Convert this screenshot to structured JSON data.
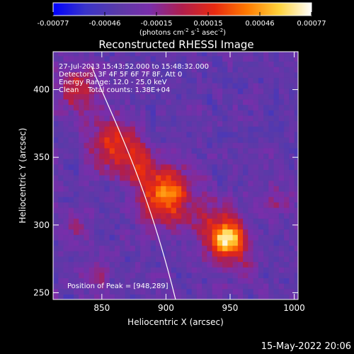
{
  "colorbar": {
    "ticks": [
      "-0.00077",
      "-0.00046",
      "-0.00015",
      "0.00015",
      "0.00046",
      "0.00077"
    ],
    "unit": {
      "open": "(photons cm",
      "e1": "-2",
      "s": " s",
      "e2": "-1",
      "asec": " asec",
      "e3": "-2",
      "close": ")"
    }
  },
  "chart_data": {
    "type": "heatmap",
    "title": "Reconstructed RHESSI Image",
    "xlabel": "Heliocentric X (arcsec)",
    "ylabel": "Heliocentric Y (arcsec)",
    "xlim": [
      812,
      1003
    ],
    "ylim": [
      245,
      428
    ],
    "xticks": [
      850,
      900,
      950,
      1000
    ],
    "yticks": [
      250,
      300,
      350,
      400
    ],
    "value_range": [
      -0.00077,
      0.00077
    ],
    "peak": [
      948,
      289
    ],
    "grid": false,
    "info_lines": [
      "27-Jul-2013 15:43:52.000 to 15:48:32.000",
      "Detectors: 3F 4F 5F 6F 7F 8F, Att 0",
      "Energy Range: 12.0 - 25.0 keV",
      "Clean    Total counts: 1.38E+04"
    ],
    "peak_text": "Position of Peak = [948,289]"
  },
  "footer": {
    "timestamp": "15-May-2022 20:06"
  },
  "colors": {
    "background": "#000000",
    "frame": "#ffffff",
    "limb": "#ffffff",
    "colormap": [
      "#0000ff",
      "#3a34c8",
      "#5a3aa8",
      "#7a2eaa",
      "#b01e4c",
      "#e82a10",
      "#ff7a00",
      "#ffd33c",
      "#ffffff"
    ]
  }
}
